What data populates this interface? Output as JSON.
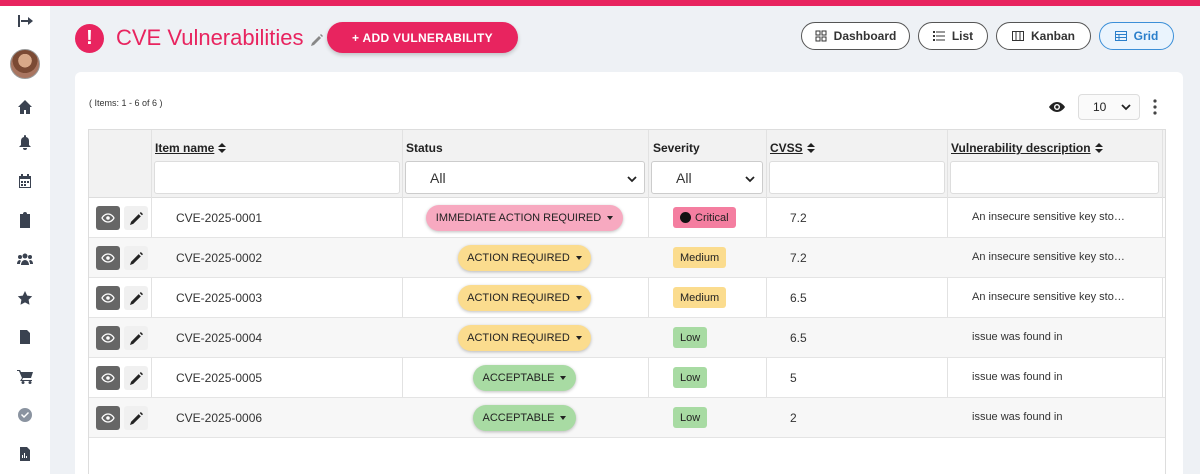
{
  "colors": {
    "brand": "#e8245f",
    "immediate": "#f7a9c0",
    "action": "#fbdc8e",
    "acceptable": "#a8dba3",
    "critical_badge": "#f47ea0",
    "medium_badge": "#fbdc8e",
    "low_badge": "#a8dba3"
  },
  "header": {
    "title": "CVE Vulnerabilities",
    "add_button": "+ ADD VULNERABILITY",
    "views": [
      {
        "label": "Dashboard",
        "icon": "dashboard-icon"
      },
      {
        "label": "List",
        "icon": "list-icon"
      },
      {
        "label": "Kanban",
        "icon": "kanban-icon"
      },
      {
        "label": "Grid",
        "icon": "grid-icon",
        "active": true
      }
    ]
  },
  "sidebar": {
    "items": [
      "collapse-icon",
      "avatar",
      "home-icon",
      "bell-icon",
      "calendar-icon",
      "clipboard-icon",
      "team-icon",
      "star-icon",
      "document-icon",
      "cart-icon",
      "check-circle-icon",
      "report-icon"
    ]
  },
  "toolbar": {
    "items_info": "( Items: 1 - 6 of 6 )",
    "page_size": "10"
  },
  "table": {
    "columns": {
      "item_name": "Item name",
      "status": "Status",
      "severity": "Severity",
      "cvss": "CVSS",
      "description": "Vulnerability description"
    },
    "filters": {
      "status": "All",
      "severity": "All"
    },
    "rows": [
      {
        "name": "CVE-2025-0001",
        "status": "IMMEDIATE ACTION REQUIRED",
        "severity": "Critical",
        "cvss": "7.2",
        "description": "An insecure sensitive key sto…"
      },
      {
        "name": "CVE-2025-0002",
        "status": "ACTION REQUIRED",
        "severity": "Medium",
        "cvss": "7.2",
        "description": "An insecure sensitive key sto…"
      },
      {
        "name": "CVE-2025-0003",
        "status": "ACTION REQUIRED",
        "severity": "Medium",
        "cvss": "6.5",
        "description": "An insecure sensitive key sto…"
      },
      {
        "name": "CVE-2025-0004",
        "status": "ACTION REQUIRED",
        "severity": "Low",
        "cvss": "6.5",
        "description": "issue was found in"
      },
      {
        "name": "CVE-2025-0005",
        "status": "ACCEPTABLE",
        "severity": "Low",
        "cvss": "5",
        "description": "issue was found in"
      },
      {
        "name": "CVE-2025-0006",
        "status": "ACCEPTABLE",
        "severity": "Low",
        "cvss": "2",
        "description": "issue was found in"
      }
    ]
  }
}
